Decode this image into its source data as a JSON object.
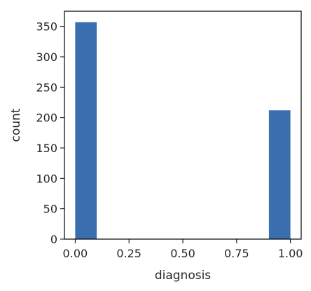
{
  "chart_data": {
    "type": "bar",
    "title": "",
    "xlabel": "diagnosis",
    "ylabel": "count",
    "bins": [
      {
        "x_start": 0.0,
        "x_end": 0.1,
        "value": 357
      },
      {
        "x_start": 0.1,
        "x_end": 0.2,
        "value": 0
      },
      {
        "x_start": 0.2,
        "x_end": 0.3,
        "value": 0
      },
      {
        "x_start": 0.3,
        "x_end": 0.4,
        "value": 0
      },
      {
        "x_start": 0.4,
        "x_end": 0.5,
        "value": 0
      },
      {
        "x_start": 0.5,
        "x_end": 0.6,
        "value": 0
      },
      {
        "x_start": 0.6,
        "x_end": 0.7,
        "value": 0
      },
      {
        "x_start": 0.7,
        "x_end": 0.8,
        "value": 0
      },
      {
        "x_start": 0.8,
        "x_end": 0.9,
        "value": 0
      },
      {
        "x_start": 0.9,
        "x_end": 1.0,
        "value": 212
      }
    ],
    "xlim": [
      -0.05,
      1.05
    ],
    "ylim": [
      0,
      375
    ],
    "x_ticks": [
      0.0,
      0.25,
      0.5,
      0.75,
      1.0
    ],
    "x_tick_labels": [
      "0.00",
      "0.25",
      "0.50",
      "0.75",
      "1.00"
    ],
    "y_ticks": [
      0,
      50,
      100,
      150,
      200,
      250,
      300,
      350
    ],
    "y_tick_labels": [
      "0",
      "50",
      "100",
      "150",
      "200",
      "250",
      "300",
      "350"
    ],
    "grid": false,
    "bar_color": "#3a6faf"
  }
}
